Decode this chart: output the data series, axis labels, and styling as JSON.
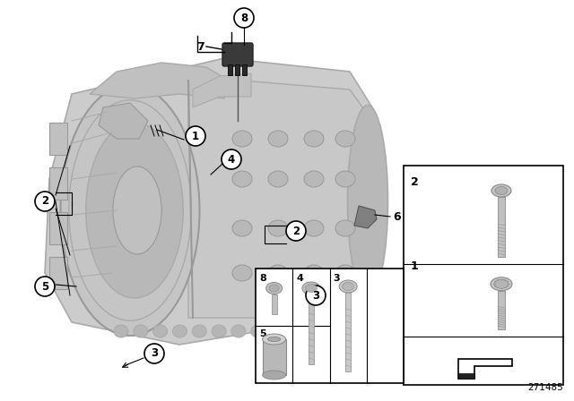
{
  "bg_color": "#ffffff",
  "fig_width": 6.4,
  "fig_height": 4.48,
  "dpi": 100,
  "gearbox_color": "#c8c8c8",
  "gearbox_edge": "#aaaaaa",
  "part_id": "271485"
}
